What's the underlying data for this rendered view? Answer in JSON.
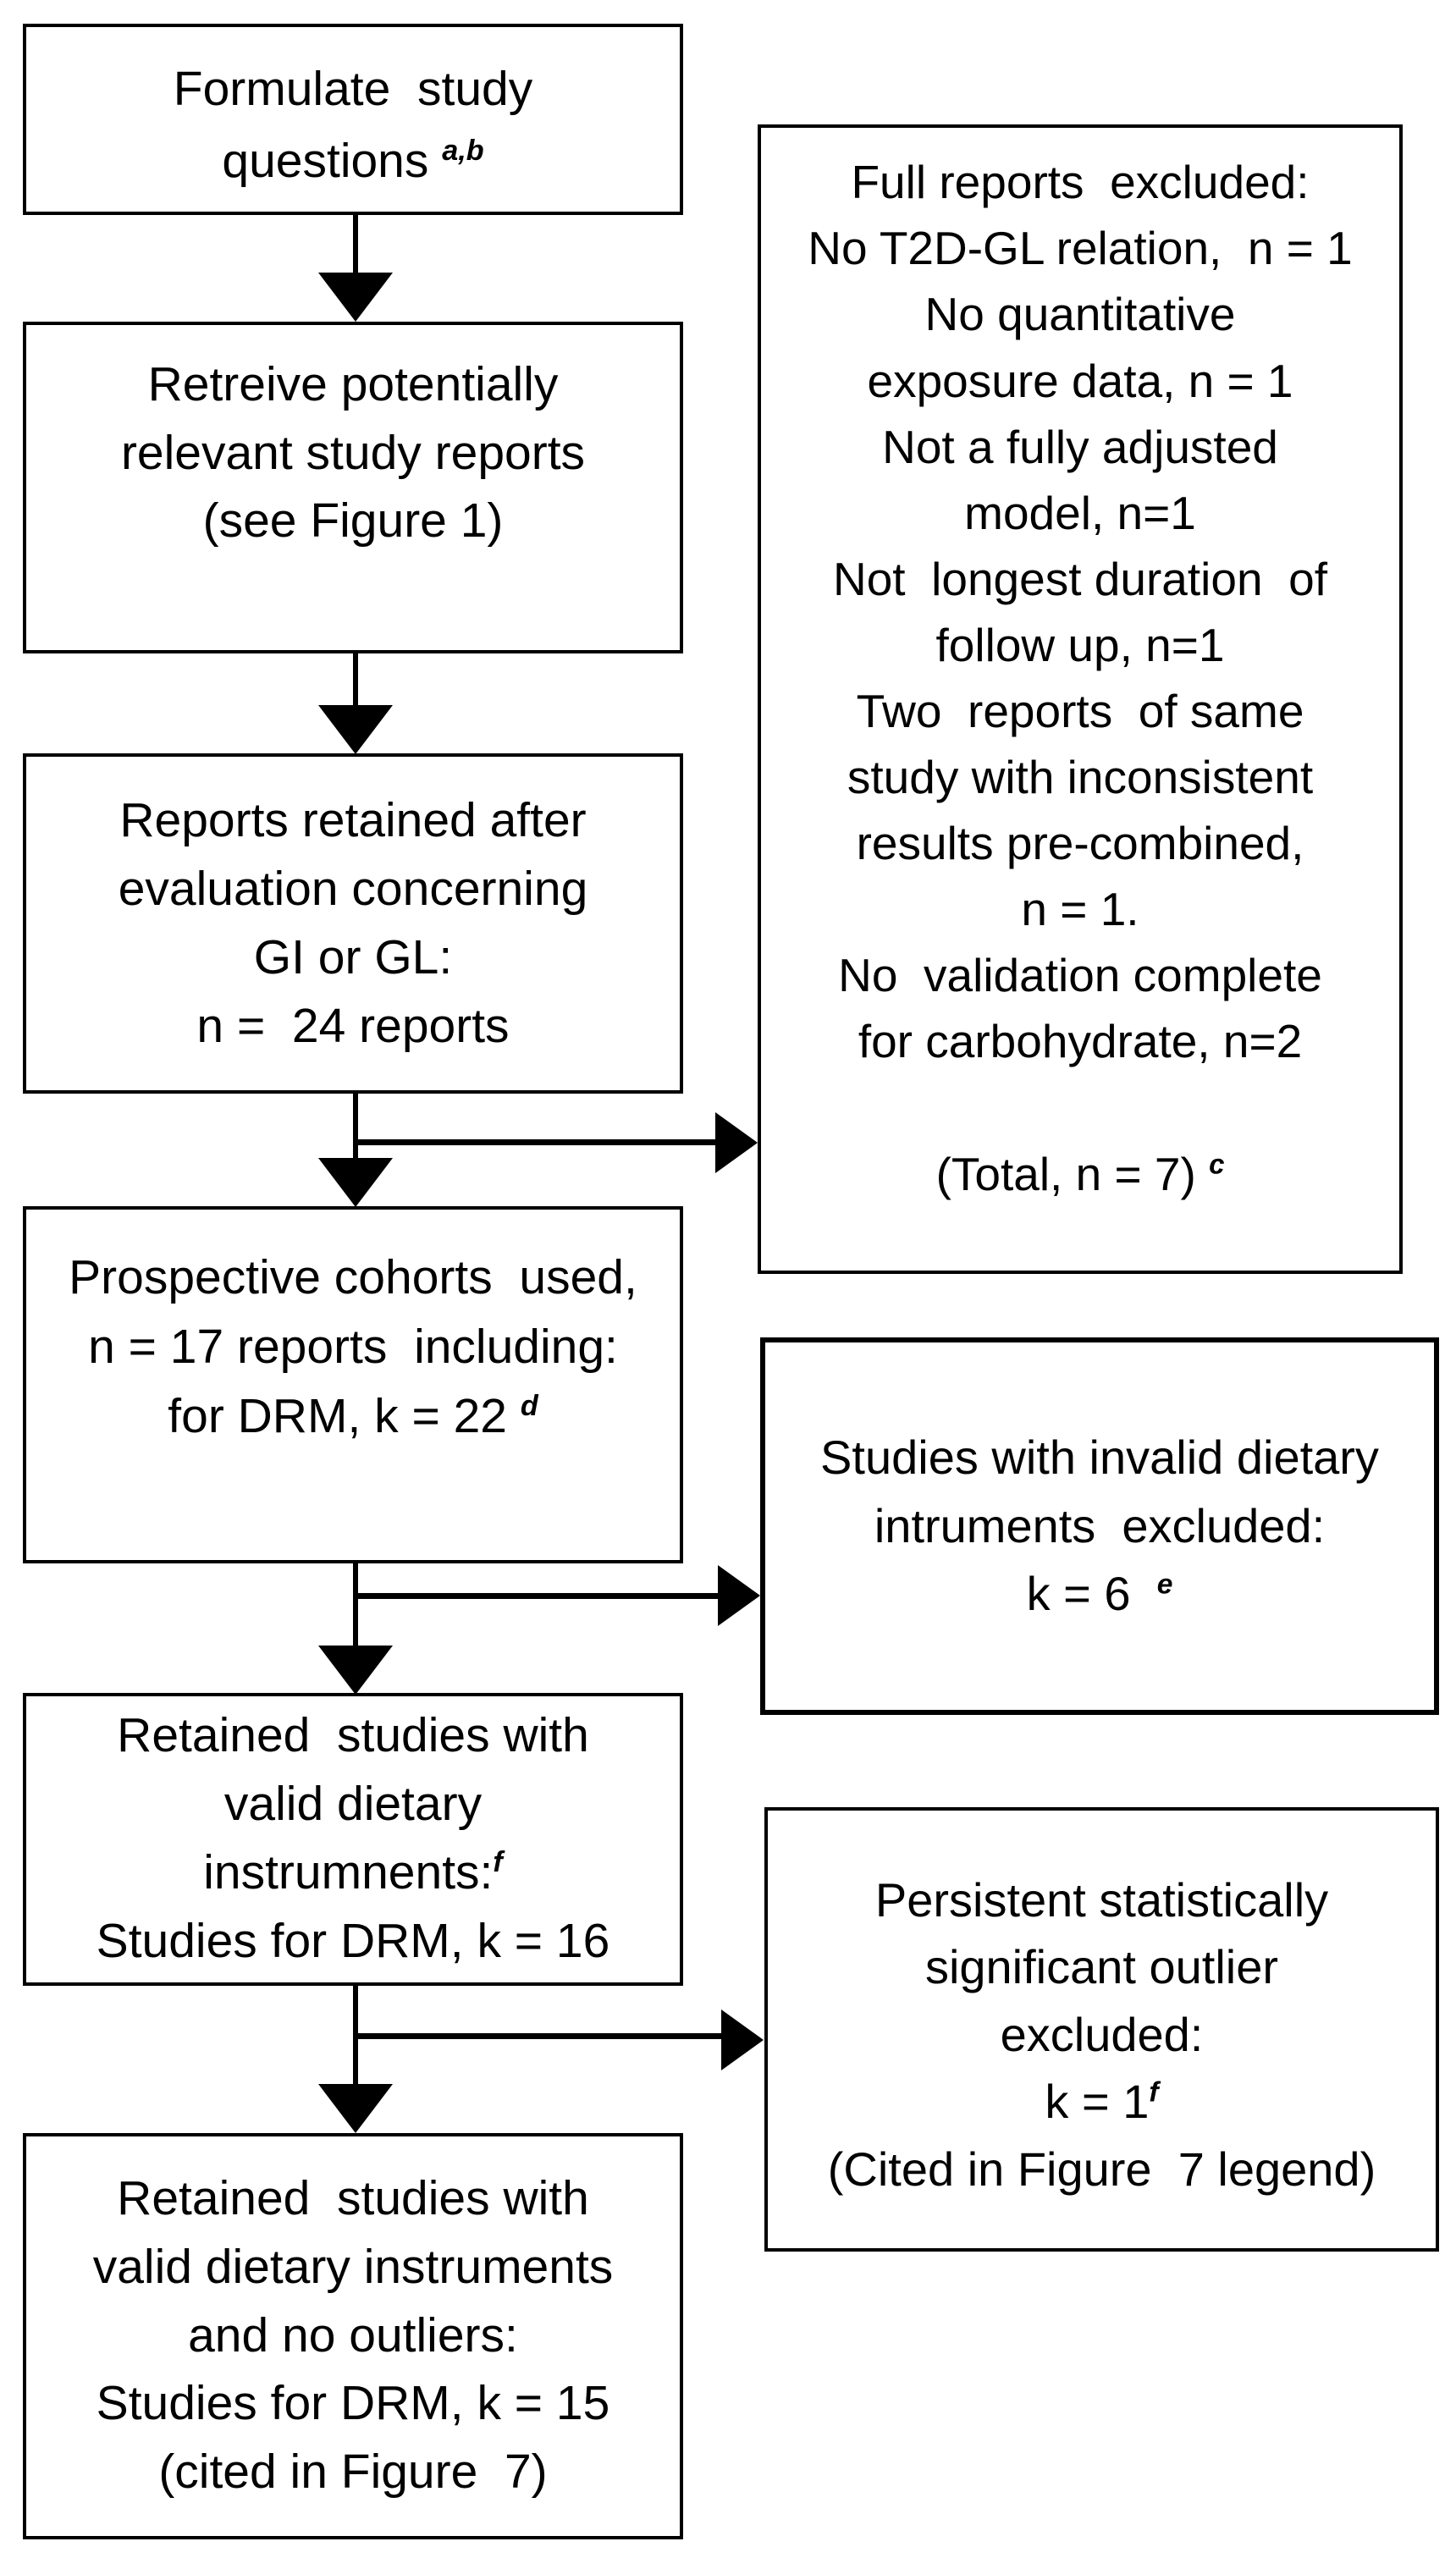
{
  "diagram": {
    "title": "Study selection flow diagram",
    "colors": {
      "background": "#ffffff",
      "line": "#000000",
      "text": "#000000"
    },
    "boxes": {
      "b1": {
        "lines": [
          {
            "text": "Formulate  study"
          },
          {
            "text": "questions ",
            "sup": "a,b"
          }
        ]
      },
      "b2": {
        "lines": [
          {
            "text": "Retreive potentially"
          },
          {
            "text": "relevant study reports"
          },
          {
            "text": "(see Figure 1)"
          }
        ]
      },
      "b3": {
        "lines": [
          {
            "text": "Reports retained after"
          },
          {
            "text": "evaluation concerning"
          },
          {
            "text": "GI or GL:"
          },
          {
            "text": "n =  24 reports"
          }
        ]
      },
      "b4": {
        "lines": [
          {
            "text": "Prospective cohorts  used,"
          },
          {
            "text": "n = 17 reports  including:"
          },
          {
            "text": "for DRM, k = 22 ",
            "sup": "d"
          }
        ]
      },
      "b5": {
        "lines": [
          {
            "text": "Retained  studies with"
          },
          {
            "text": "valid dietary"
          },
          {
            "text": "instrumnents:",
            "sup": "f"
          },
          {
            "text": "Studies for DRM, k = 16"
          }
        ]
      },
      "b6": {
        "lines": [
          {
            "text": "Retained  studies with"
          },
          {
            "text": "valid dietary instruments"
          },
          {
            "text": "and no outliers:"
          },
          {
            "text": "Studies for DRM, k = 15"
          },
          {
            "text": "(cited in Figure  7)"
          }
        ]
      },
      "r1": {
        "lines": [
          {
            "text": "Full reports  excluded:"
          },
          {
            "text": "No T2D-GL relation,  n = 1"
          },
          {
            "text": "No quantitative"
          },
          {
            "text": "exposure data, n = 1"
          },
          {
            "text": "Not a fully adjusted"
          },
          {
            "text": "model, n=1"
          },
          {
            "text": "Not  longest duration  of"
          },
          {
            "text": "follow up, n=1"
          },
          {
            "text": "Two  reports  of same"
          },
          {
            "text": "study with inconsistent"
          },
          {
            "text": "results pre-combined,"
          },
          {
            "text": "n = 1."
          },
          {
            "text": "No  validation complete"
          },
          {
            "text": "for carbohydrate, n=2"
          },
          {
            "text": ""
          },
          {
            "text": "(Total, n = 7) ",
            "sup": "c"
          }
        ]
      },
      "r2": {
        "lines": [
          {
            "text": "Studies with invalid dietary"
          },
          {
            "text": "intruments  excluded:"
          },
          {
            "text": "k = 6  ",
            "sup": "e"
          }
        ]
      },
      "r3": {
        "lines": [
          {
            "text": "Persistent statistically"
          },
          {
            "text": "significant outlier"
          },
          {
            "text": "excluded:"
          },
          {
            "text": "k = 1",
            "sup": "f"
          },
          {
            "text": "(Cited in Figure  7 legend)"
          }
        ]
      }
    }
  }
}
